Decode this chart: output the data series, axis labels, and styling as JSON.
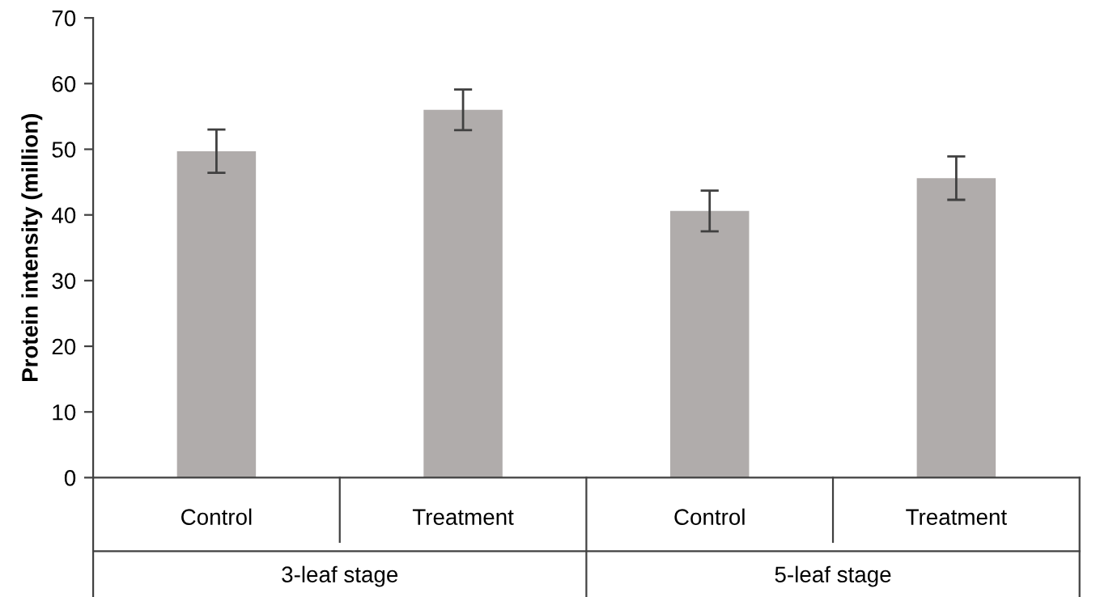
{
  "chart_data": {
    "type": "bar",
    "ylabel": "Protein intensity (million)",
    "categories": [
      "Control",
      "Treatment",
      "Control",
      "Treatment"
    ],
    "values": [
      49.7,
      56.0,
      40.6,
      45.6
    ],
    "errors": [
      3.3,
      3.1,
      3.1,
      3.3
    ],
    "color": "#b0acab",
    "ylim": [
      0,
      70
    ],
    "yticks": [
      0,
      10,
      20,
      30,
      40,
      50,
      60,
      70
    ],
    "grid": false,
    "annotations": [
      "3-leaf stage",
      "5-leaf stage"
    ]
  }
}
